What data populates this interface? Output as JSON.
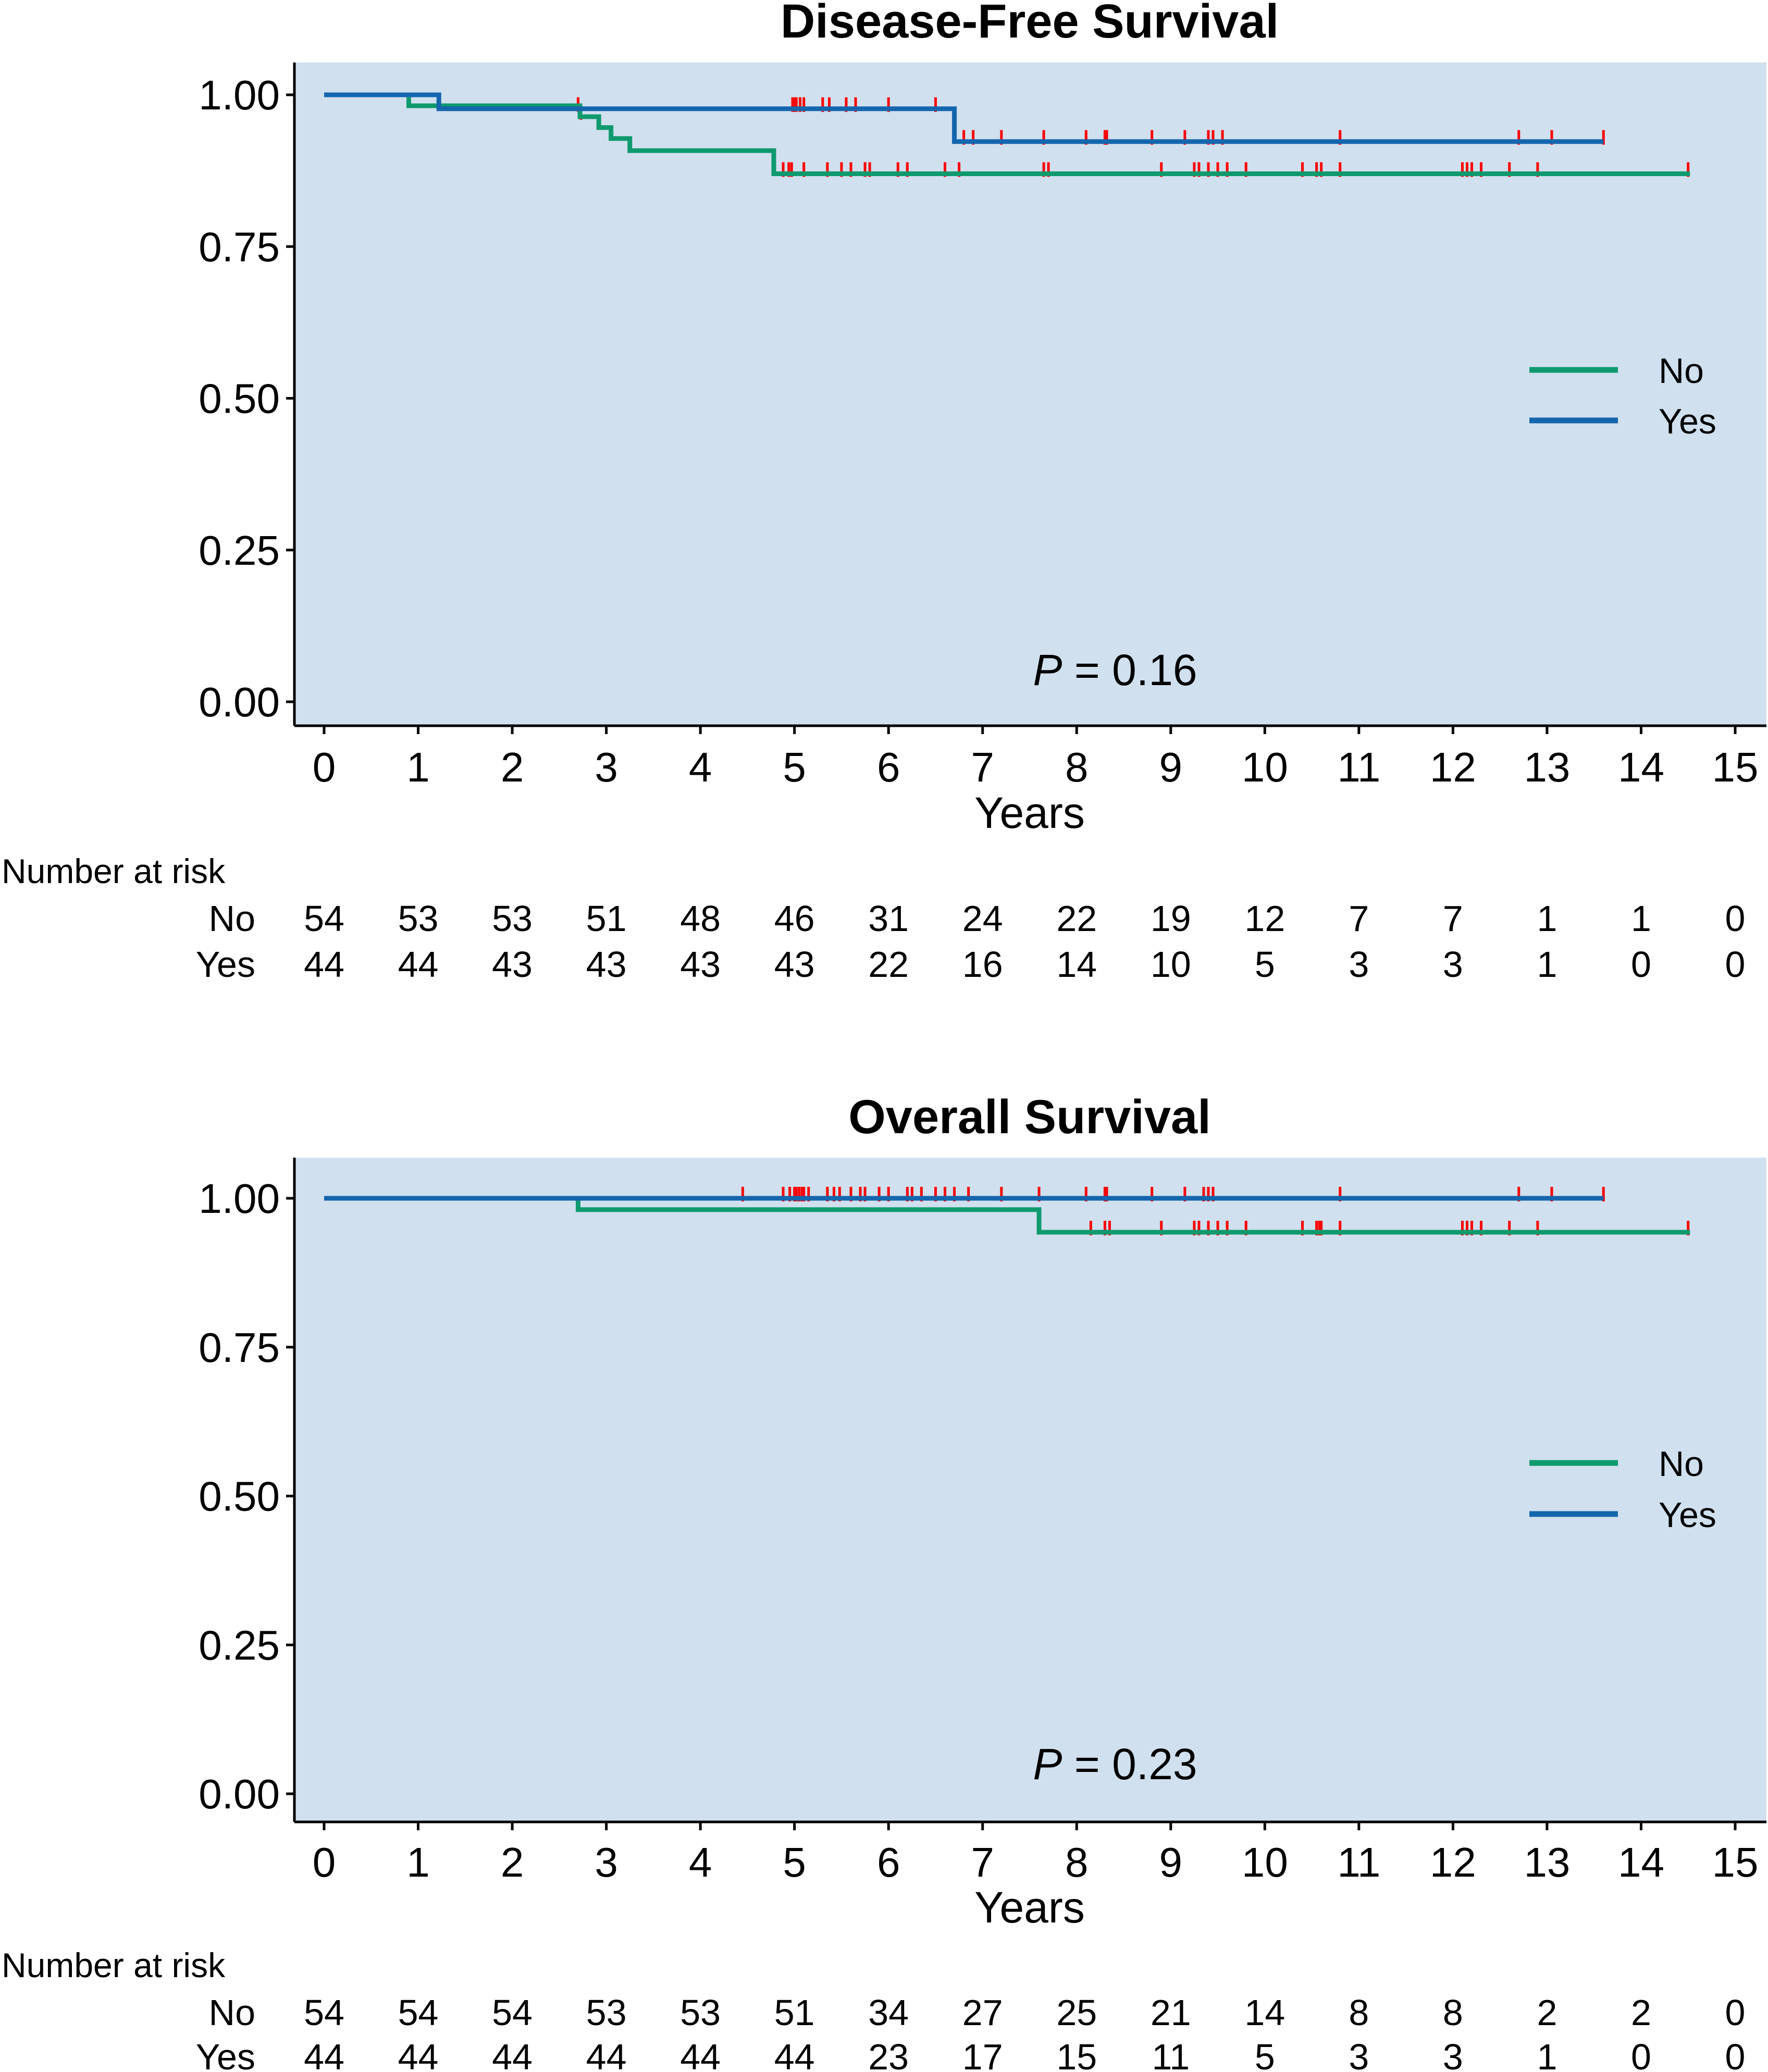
{
  "colors": {
    "panel_bg": "#d0e0ef",
    "no_line": "#0f9a6e",
    "yes_line": "#1466ad",
    "censor": "#ff0000",
    "axis": "#000000"
  },
  "chart_data": [
    {
      "type": "line",
      "subtype": "kaplan-meier",
      "title": "Disease-Free Survival",
      "xlabel": "Years",
      "ylabel": "",
      "xlim": [
        0,
        15
      ],
      "ylim": [
        0,
        1
      ],
      "x_ticks": [
        "0",
        "1",
        "2",
        "3",
        "4",
        "5",
        "6",
        "7",
        "8",
        "9",
        "10",
        "11",
        "12",
        "13",
        "14",
        "15"
      ],
      "y_ticks": [
        "0.00",
        "0.25",
        "0.50",
        "0.75",
        "1.00"
      ],
      "legend": [
        "No",
        "Yes"
      ],
      "legend_position": "right",
      "p_value": {
        "label": "P",
        "text": " = 0.16"
      },
      "series": [
        {
          "name": "No",
          "steps": [
            [
              0,
              1.0
            ],
            [
              0.9,
              0.982
            ],
            [
              2.72,
              0.964
            ],
            [
              2.92,
              0.946
            ],
            [
              3.05,
              0.928
            ],
            [
              3.25,
              0.908
            ],
            [
              4.78,
              0.87
            ]
          ],
          "end": 14.52,
          "censors": [
            2.73,
            4.88,
            4.94,
            4.97,
            5.1,
            5.35,
            5.5,
            5.6,
            5.75,
            5.8,
            6.1,
            6.2,
            6.6,
            6.75,
            7.65,
            7.7,
            8.9,
            9.25,
            9.3,
            9.4,
            9.5,
            9.6,
            9.8,
            10.4,
            10.55,
            10.6,
            10.8,
            12.1,
            12.15,
            12.2,
            12.3,
            12.6,
            12.9,
            14.5
          ]
        },
        {
          "name": "Yes",
          "steps": [
            [
              0,
              1.0
            ],
            [
              1.22,
              0.977
            ],
            [
              6.7,
              0.923
            ]
          ],
          "end": 13.6,
          "censors": [
            2.7,
            4.98,
            5.0,
            5.02,
            5.06,
            5.1,
            5.3,
            5.37,
            5.55,
            5.65,
            6.0,
            6.5,
            6.8,
            6.9,
            7.2,
            7.65,
            8.1,
            8.3,
            8.32,
            8.8,
            9.15,
            9.4,
            9.45,
            9.55,
            10.8,
            12.7,
            13.05,
            13.6
          ]
        }
      ],
      "risk_table": {
        "title": "Number at risk",
        "rows": [
          {
            "label": "No",
            "values": [
              "54",
              "53",
              "53",
              "51",
              "48",
              "46",
              "31",
              "24",
              "22",
              "19",
              "12",
              "7",
              "7",
              "1",
              "1",
              "0"
            ]
          },
          {
            "label": "Yes",
            "values": [
              "44",
              "44",
              "43",
              "43",
              "43",
              "43",
              "22",
              "16",
              "14",
              "10",
              "5",
              "3",
              "3",
              "1",
              "0",
              "0"
            ]
          }
        ]
      }
    },
    {
      "type": "line",
      "subtype": "kaplan-meier",
      "title": "Overall Survival",
      "xlabel": "Years",
      "ylabel": "",
      "xlim": [
        0,
        15
      ],
      "ylim": [
        0,
        1
      ],
      "x_ticks": [
        "0",
        "1",
        "2",
        "3",
        "4",
        "5",
        "6",
        "7",
        "8",
        "9",
        "10",
        "11",
        "12",
        "13",
        "14",
        "15"
      ],
      "y_ticks": [
        "0.00",
        "0.25",
        "0.50",
        "0.75",
        "1.00"
      ],
      "legend": [
        "No",
        "Yes"
      ],
      "legend_position": "right",
      "p_value": {
        "label": "P",
        "text": " = 0.23"
      },
      "series": [
        {
          "name": "No",
          "steps": [
            [
              0,
              1.0
            ],
            [
              2.7,
              0.981
            ],
            [
              7.6,
              0.943
            ]
          ],
          "end": 14.52,
          "censors": [
            8.15,
            8.3,
            8.35,
            8.9,
            9.25,
            9.3,
            9.4,
            9.5,
            9.6,
            9.8,
            10.4,
            10.55,
            10.58,
            10.6,
            10.8,
            12.1,
            12.15,
            12.2,
            12.3,
            12.6,
            12.9,
            14.5
          ]
        },
        {
          "name": "Yes",
          "steps": [
            [
              0,
              1.0
            ]
          ],
          "end": 13.6,
          "censors": [
            4.45,
            4.88,
            4.95,
            5.0,
            5.02,
            5.05,
            5.08,
            5.1,
            5.15,
            5.35,
            5.42,
            5.48,
            5.6,
            5.7,
            5.75,
            5.9,
            6.0,
            6.2,
            6.25,
            6.35,
            6.5,
            6.6,
            6.7,
            6.85,
            7.2,
            7.6,
            8.1,
            8.3,
            8.32,
            8.8,
            9.15,
            9.35,
            9.4,
            9.45,
            10.8,
            12.7,
            13.05,
            13.6
          ]
        }
      ],
      "risk_table": {
        "title": "Number at risk",
        "rows": [
          {
            "label": "No",
            "values": [
              "54",
              "54",
              "54",
              "53",
              "53",
              "51",
              "34",
              "27",
              "25",
              "21",
              "14",
              "8",
              "8",
              "2",
              "2",
              "0"
            ]
          },
          {
            "label": "Yes",
            "values": [
              "44",
              "44",
              "44",
              "44",
              "44",
              "44",
              "23",
              "17",
              "15",
              "11",
              "5",
              "3",
              "3",
              "1",
              "0",
              "0"
            ]
          }
        ]
      }
    }
  ]
}
